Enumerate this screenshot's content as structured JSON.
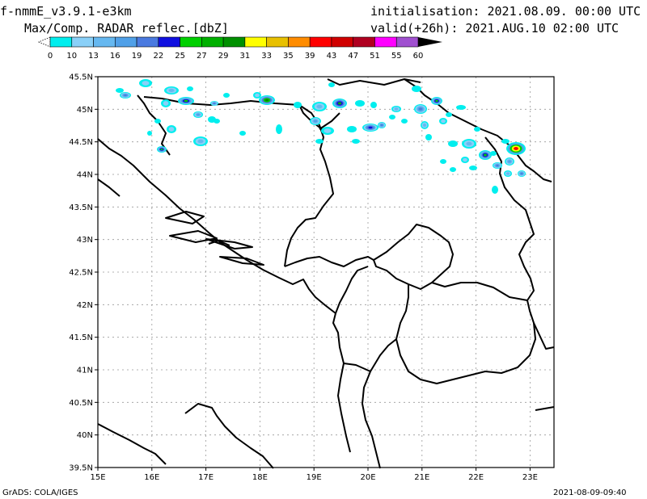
{
  "header": {
    "model": "f-nmmE_v3.9.1-e3km",
    "product": "Max/Comp. RADAR reflec.[dbZ]",
    "init": "initialisation: 2021.08.09. 00:00 UTC",
    "valid": "valid(+26h): 2021.AUG.10 02:00 UTC"
  },
  "colorbar": {
    "labels": [
      "0",
      "10",
      "13",
      "16",
      "19",
      "22",
      "25",
      "27",
      "29",
      "31",
      "33",
      "35",
      "39",
      "43",
      "47",
      "51",
      "55",
      "60"
    ],
    "colors": [
      "#00eeee",
      "#8ad0f8",
      "#66b8f0",
      "#50a0e8",
      "#4a7ae0",
      "#1010e0",
      "#00d000",
      "#00b000",
      "#009000",
      "#ffff00",
      "#e8c000",
      "#ff8c00",
      "#ff0000",
      "#d00000",
      "#b00020",
      "#ff00ff",
      "#a050d0"
    ]
  },
  "map": {
    "lat_labels": [
      "45.5N",
      "45N",
      "44.5N",
      "44N",
      "43.5N",
      "43N",
      "42.5N",
      "42N",
      "41.5N",
      "41N",
      "40.5N",
      "40N",
      "39.5N"
    ],
    "lon_labels": [
      "15E",
      "16E",
      "17E",
      "18E",
      "19E",
      "20E",
      "21E",
      "22E",
      "23E"
    ]
  },
  "footer": {
    "left": "GrADS: COLA/IGES",
    "right": "2021-08-09-09:40"
  }
}
